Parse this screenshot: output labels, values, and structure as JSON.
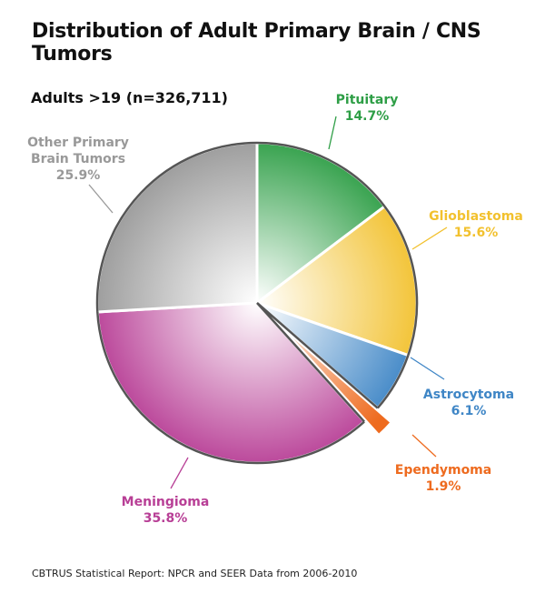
{
  "title": "Distribution of Adult Primary Brain / CNS Tumors",
  "subtitle": "Adults >19 (n=326,711)",
  "source": "CBTRUS Statistical Report: NPCR and SEER Data from 2006-2010",
  "chart_data": {
    "type": "pie",
    "title": "Distribution of Adult Primary Brain / CNS Tumors",
    "subtitle": "Adults >19 (n=326,711)",
    "slices": [
      {
        "name": "Pituitary",
        "value": 14.7,
        "label": "14.7%",
        "color": "#2e9e46"
      },
      {
        "name": "Glioblastoma",
        "value": 15.6,
        "label": "15.6%",
        "color": "#f2c12e"
      },
      {
        "name": "Astrocytoma",
        "value": 6.1,
        "label": "6.1%",
        "color": "#3f86c6"
      },
      {
        "name": "Ependymoma",
        "value": 1.9,
        "label": "1.9%",
        "color": "#ee6b1f",
        "exploded": true
      },
      {
        "name": "Meningioma",
        "value": 35.8,
        "label": "35.8%",
        "color": "#b83f96"
      },
      {
        "name": "Other Primary Brain Tumors",
        "value": 25.9,
        "label": "25.9%",
        "color": "#999999"
      }
    ]
  }
}
